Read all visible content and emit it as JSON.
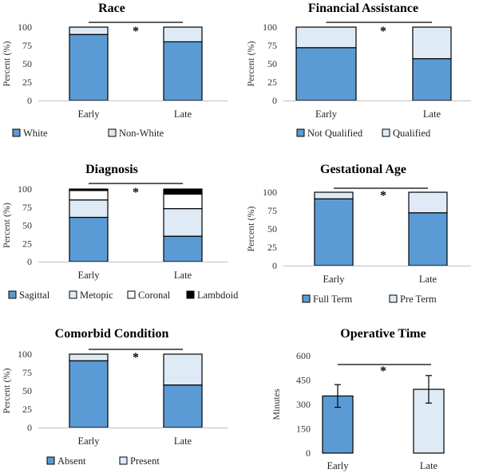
{
  "chart_data": [
    {
      "type": "bar",
      "stacked": true,
      "title": "Race",
      "ylabel": "Percent (%)",
      "categories": [
        "Early",
        "Late"
      ],
      "yticks": [
        0,
        25,
        50,
        75,
        100
      ],
      "ylim": [
        0,
        100
      ],
      "series": [
        {
          "name": "White",
          "values": [
            90,
            80
          ],
          "color": "#5b9bd5"
        },
        {
          "name": "Non-White",
          "values": [
            10,
            20
          ],
          "color": "#deebf7"
        }
      ],
      "significance": "*"
    },
    {
      "type": "bar",
      "stacked": true,
      "title": "Financial Assistance",
      "ylabel": "Percent (%)",
      "categories": [
        "Early",
        "Late"
      ],
      "yticks": [
        0,
        25,
        50,
        75,
        100
      ],
      "ylim": [
        0,
        100
      ],
      "series": [
        {
          "name": "Not Qualified",
          "values": [
            72,
            57
          ],
          "color": "#5b9bd5"
        },
        {
          "name": "Qualified",
          "values": [
            28,
            43
          ],
          "color": "#deebf7"
        }
      ],
      "significance": "*"
    },
    {
      "type": "bar",
      "stacked": true,
      "title": "Diagnosis",
      "ylabel": "Percent (%)",
      "categories": [
        "Early",
        "Late"
      ],
      "yticks": [
        0,
        25,
        50,
        75,
        100
      ],
      "ylim": [
        0,
        100
      ],
      "series": [
        {
          "name": "Sagittal",
          "values": [
            61,
            35
          ],
          "color": "#5b9bd5"
        },
        {
          "name": "Metopic",
          "values": [
            24,
            38
          ],
          "color": "#deebf7"
        },
        {
          "name": "Coronal",
          "values": [
            13,
            20
          ],
          "color": "#ffffff"
        },
        {
          "name": "Lambdoid",
          "values": [
            2,
            7
          ],
          "color": "#000000"
        }
      ],
      "significance": "*"
    },
    {
      "type": "bar",
      "stacked": true,
      "title": "Gestational Age",
      "ylabel": "Percent (%)",
      "categories": [
        "Early",
        "Late"
      ],
      "yticks": [
        0,
        25,
        50,
        75,
        100
      ],
      "ylim": [
        0,
        100
      ],
      "series": [
        {
          "name": "Full Term",
          "values": [
            91,
            72
          ],
          "color": "#5b9bd5"
        },
        {
          "name": "Pre Term",
          "values": [
            9,
            28
          ],
          "color": "#deebf7"
        }
      ],
      "significance": "*"
    },
    {
      "type": "bar",
      "stacked": true,
      "title": "Comorbid Condition",
      "ylabel": "Percent (%)",
      "categories": [
        "Early",
        "Late"
      ],
      "yticks": [
        0,
        25,
        50,
        75,
        100
      ],
      "ylim": [
        0,
        100
      ],
      "series": [
        {
          "name": "Absent",
          "values": [
            91,
            58
          ],
          "color": "#5b9bd5"
        },
        {
          "name": "Present",
          "values": [
            9,
            42
          ],
          "color": "#deebf7"
        }
      ],
      "significance": "*"
    },
    {
      "type": "bar",
      "stacked": false,
      "title": "Operative Time",
      "ylabel": "Minutes",
      "categories": [
        "Early",
        "Late"
      ],
      "yticks": [
        0,
        150,
        300,
        450,
        600
      ],
      "ylim": [
        0,
        600
      ],
      "series": [
        {
          "values": [
            352,
            393
          ],
          "error": [
            70,
            85
          ],
          "colors": [
            "#5b9bd5",
            "#deebf7"
          ]
        }
      ],
      "significance": "*"
    }
  ]
}
